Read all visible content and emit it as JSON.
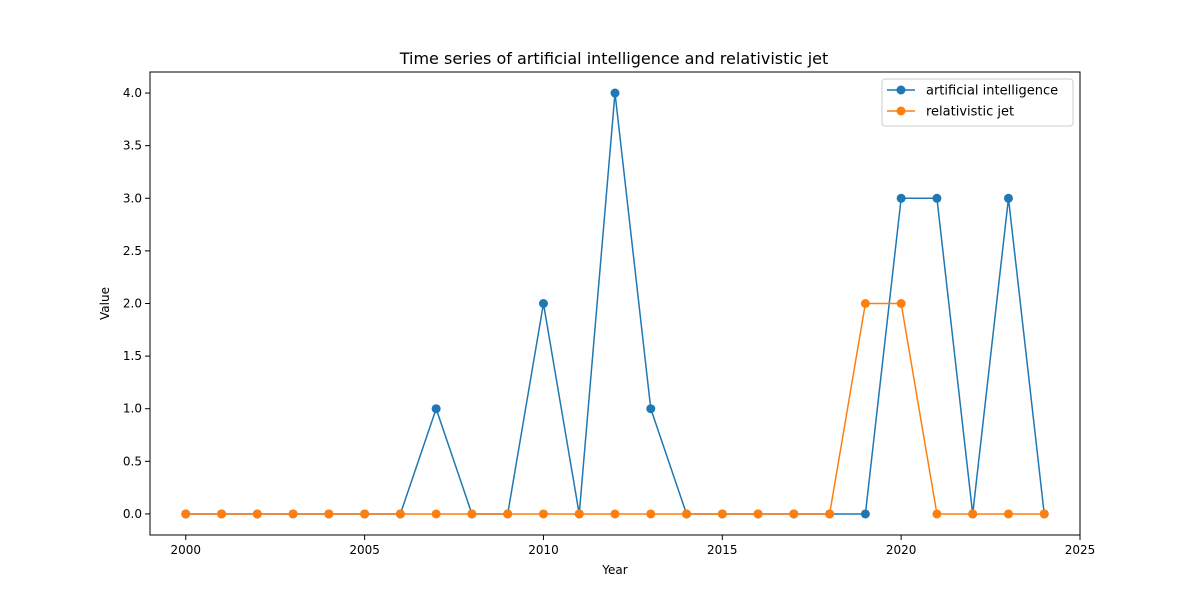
{
  "chart_data": {
    "type": "line",
    "title": "Time series of artificial intelligence and relativistic jet",
    "xlabel": "Year",
    "ylabel": "Value",
    "xlim": [
      1999,
      2025
    ],
    "ylim": [
      -0.2,
      4.2
    ],
    "x_ticks": [
      2000,
      2005,
      2010,
      2015,
      2020,
      2025
    ],
    "y_ticks": [
      0.0,
      0.5,
      1.0,
      1.5,
      2.0,
      2.5,
      3.0,
      3.5,
      4.0
    ],
    "x": [
      2000,
      2001,
      2002,
      2003,
      2004,
      2005,
      2006,
      2007,
      2008,
      2009,
      2010,
      2011,
      2012,
      2013,
      2014,
      2015,
      2016,
      2017,
      2018,
      2019,
      2020,
      2021,
      2022,
      2023,
      2024
    ],
    "series": [
      {
        "name": "artificial intelligence",
        "color": "#1f77b4",
        "values": [
          0,
          0,
          0,
          0,
          0,
          0,
          0,
          1,
          0,
          0,
          2,
          0,
          4,
          1,
          0,
          0,
          0,
          0,
          0,
          0,
          3,
          3,
          0,
          3,
          0
        ]
      },
      {
        "name": "relativistic jet",
        "color": "#ff7f0e",
        "values": [
          0,
          0,
          0,
          0,
          0,
          0,
          0,
          0,
          0,
          0,
          0,
          0,
          0,
          0,
          0,
          0,
          0,
          0,
          0,
          2,
          2,
          0,
          0,
          0,
          0
        ]
      }
    ],
    "grid": false,
    "legend_position": "top-right"
  }
}
